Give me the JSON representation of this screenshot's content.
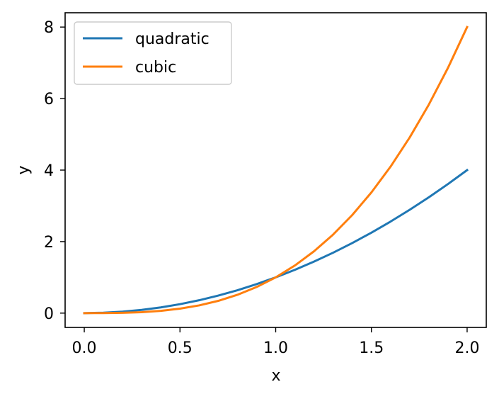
{
  "chart_data": {
    "type": "line",
    "title": "",
    "xlabel": "x",
    "ylabel": "y",
    "xlim": [
      -0.1,
      2.1
    ],
    "ylim": [
      -0.4,
      8.4
    ],
    "xticks": [
      0.0,
      0.5,
      1.0,
      1.5,
      2.0
    ],
    "xtick_labels": [
      "0.0",
      "0.5",
      "1.0",
      "1.5",
      "2.0"
    ],
    "yticks": [
      0,
      2,
      4,
      6,
      8
    ],
    "ytick_labels": [
      "0",
      "2",
      "4",
      "6",
      "8"
    ],
    "grid": false,
    "legend": {
      "placement": "top-left"
    },
    "series": [
      {
        "name": "quadratic",
        "color": "#1f77b4",
        "x": [
          0.0,
          0.1,
          0.2,
          0.3,
          0.4,
          0.5,
          0.6,
          0.7,
          0.8,
          0.9,
          1.0,
          1.1,
          1.2,
          1.3,
          1.4,
          1.5,
          1.6,
          1.7,
          1.8,
          1.9,
          2.0
        ],
        "y": [
          0.0,
          0.01,
          0.04,
          0.09,
          0.16,
          0.25,
          0.36,
          0.49,
          0.64,
          0.81,
          1.0,
          1.21,
          1.44,
          1.69,
          1.96,
          2.25,
          2.56,
          2.89,
          3.24,
          3.61,
          4.0
        ]
      },
      {
        "name": "cubic",
        "color": "#ff7f0e",
        "x": [
          0.0,
          0.1,
          0.2,
          0.3,
          0.4,
          0.5,
          0.6,
          0.7,
          0.8,
          0.9,
          1.0,
          1.1,
          1.2,
          1.3,
          1.4,
          1.5,
          1.6,
          1.7,
          1.8,
          1.9,
          2.0
        ],
        "y": [
          0.0,
          0.001,
          0.008,
          0.027,
          0.064,
          0.125,
          0.216,
          0.343,
          0.512,
          0.729,
          1.0,
          1.331,
          1.728,
          2.197,
          2.744,
          3.375,
          4.096,
          4.913,
          5.832,
          6.859,
          8.0
        ]
      }
    ]
  }
}
